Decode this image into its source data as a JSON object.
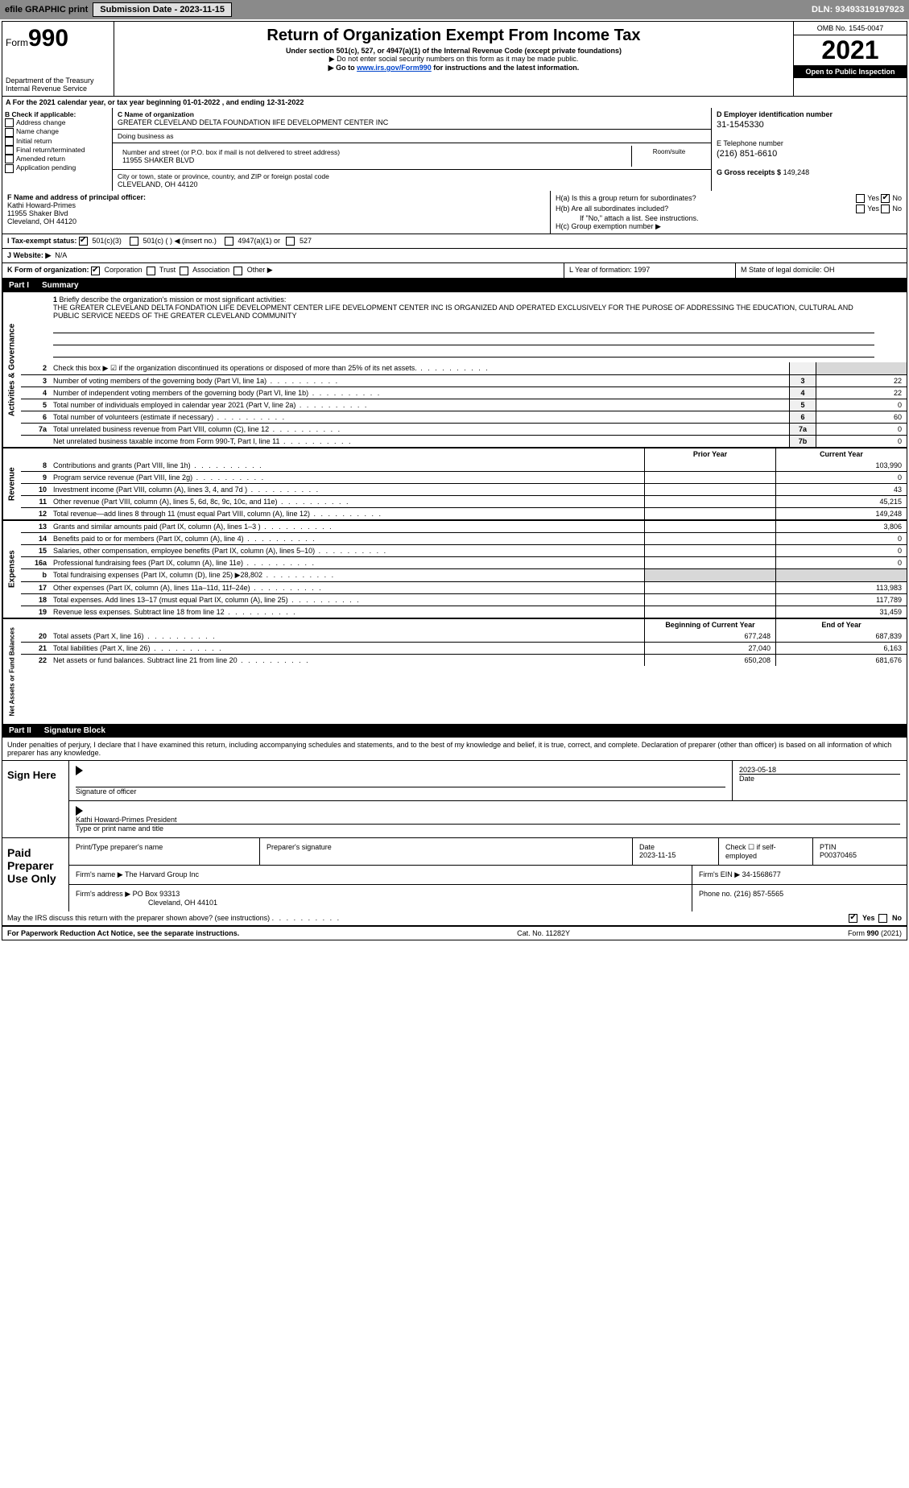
{
  "toolbar": {
    "efile_label": "efile GRAPHIC print",
    "submission_label": "Submission Date - 2023-11-15",
    "dln": "DLN: 93493319197923"
  },
  "header": {
    "form_word": "Form",
    "form_num": "990",
    "title": "Return of Organization Exempt From Income Tax",
    "subtitle": "Under section 501(c), 527, or 4947(a)(1) of the Internal Revenue Code (except private foundations)",
    "note1": "▶ Do not enter social security numbers on this form as it may be made public.",
    "note2_pre": "▶ Go to ",
    "note2_link": "www.irs.gov/Form990",
    "note2_post": " for instructions and the latest information.",
    "dept": "Department of the Treasury\nInternal Revenue Service",
    "omb": "OMB No. 1545-0047",
    "year": "2021",
    "inspect": "Open to Public Inspection"
  },
  "A": {
    "text": "For the 2021 calendar year, or tax year beginning 01-01-2022    , and ending 12-31-2022"
  },
  "B": {
    "label": "B Check if applicable:",
    "items": [
      "Address change",
      "Name change",
      "Initial return",
      "Final return/terminated",
      "Amended return",
      "Application pending"
    ]
  },
  "C": {
    "name_label": "C Name of organization",
    "name": "GREATER CLEVELAND DELTA FOUNDATION lIFE DEVELOPMENT CENTER INC",
    "dba_label": "Doing business as",
    "dba": "",
    "street_label": "Number and street (or P.O. box if mail is not delivered to street address)",
    "room_label": "Room/suite",
    "street": "11955 SHAKER BLVD",
    "city_label": "City or town, state or province, country, and ZIP or foreign postal code",
    "city": "CLEVELAND, OH  44120"
  },
  "D": {
    "label": "D Employer identification number",
    "value": "31-1545330"
  },
  "E": {
    "label": "E Telephone number",
    "value": "(216) 851-6610"
  },
  "G": {
    "label": "G Gross receipts $",
    "value": "149,248"
  },
  "F": {
    "label": "F  Name and address of principal officer:",
    "name": "Kathi Howard-Primes",
    "street": "11955 Shaker Blvd",
    "city": "Cleveland, OH  44120"
  },
  "H": {
    "a_label": "H(a)  Is this a group return for subordinates?",
    "a_yes": "Yes",
    "a_no": "No",
    "b_label": "H(b)  Are all subordinates included?",
    "b_yes": "Yes",
    "b_no": "No",
    "b_note": "If \"No,\" attach a list. See instructions.",
    "c_label": "H(c)  Group exemption number ▶"
  },
  "I": {
    "label": "I   Tax-exempt status:",
    "opt1": "501(c)(3)",
    "opt2": "501(c) (   ) ◀ (insert no.)",
    "opt3": "4947(a)(1) or",
    "opt4": "527"
  },
  "J": {
    "label": "J  Website: ▶",
    "value": "N/A"
  },
  "K": {
    "label": "K Form of organization:",
    "opts": [
      "Corporation",
      "Trust",
      "Association",
      "Other ▶"
    ]
  },
  "L": {
    "label": "L Year of formation: 1997"
  },
  "M": {
    "label": "M State of legal domicile: OH"
  },
  "part1": {
    "num": "Part I",
    "title": "Summary"
  },
  "mission": {
    "num": "1",
    "label": "Briefly describe the organization's mission or most significant activities:",
    "text": "THE GREATER CLEVELAND DELTA FONDATION LIFE DEVELOPMENT CENTER LIFE DEVELOPMENT CENTER INC IS ORGANIZED AND OPERATED EXCLUSIVELY FOR THE PUROSE OF ADDRESSING THE EDUCATION, CULTURAL AND PUBLIC SERVICE NEEDS OF THE GREATER CLEVELAND COMMUNITY"
  },
  "gov_lines": [
    {
      "n": "2",
      "d": "Check this box ▶ ☑ if the organization discontinued its operations or disposed of more than 25% of its net assets.",
      "box": "",
      "v": ""
    },
    {
      "n": "3",
      "d": "Number of voting members of the governing body (Part VI, line 1a)",
      "box": "3",
      "v": "22"
    },
    {
      "n": "4",
      "d": "Number of independent voting members of the governing body (Part VI, line 1b)",
      "box": "4",
      "v": "22"
    },
    {
      "n": "5",
      "d": "Total number of individuals employed in calendar year 2021 (Part V, line 2a)",
      "box": "5",
      "v": "0"
    },
    {
      "n": "6",
      "d": "Total number of volunteers (estimate if necessary)",
      "box": "6",
      "v": "60"
    },
    {
      "n": "7a",
      "d": "Total unrelated business revenue from Part VIII, column (C), line 12",
      "box": "7a",
      "v": "0"
    },
    {
      "n": "",
      "d": "Net unrelated business taxable income from Form 990-T, Part I, line 11",
      "box": "7b",
      "v": "0"
    }
  ],
  "rev_head": {
    "prior": "Prior Year",
    "current": "Current Year"
  },
  "rev_lines": [
    {
      "n": "8",
      "d": "Contributions and grants (Part VIII, line 1h)",
      "p": "",
      "c": "103,990"
    },
    {
      "n": "9",
      "d": "Program service revenue (Part VIII, line 2g)",
      "p": "",
      "c": "0"
    },
    {
      "n": "10",
      "d": "Investment income (Part VIII, column (A), lines 3, 4, and 7d )",
      "p": "",
      "c": "43"
    },
    {
      "n": "11",
      "d": "Other revenue (Part VIII, column (A), lines 5, 6d, 8c, 9c, 10c, and 11e)",
      "p": "",
      "c": "45,215"
    },
    {
      "n": "12",
      "d": "Total revenue—add lines 8 through 11 (must equal Part VIII, column (A), line 12)",
      "p": "",
      "c": "149,248"
    }
  ],
  "exp_lines": [
    {
      "n": "13",
      "d": "Grants and similar amounts paid (Part IX, column (A), lines 1–3 )",
      "p": "",
      "c": "3,806"
    },
    {
      "n": "14",
      "d": "Benefits paid to or for members (Part IX, column (A), line 4)",
      "p": "",
      "c": "0"
    },
    {
      "n": "15",
      "d": "Salaries, other compensation, employee benefits (Part IX, column (A), lines 5–10)",
      "p": "",
      "c": "0"
    },
    {
      "n": "16a",
      "d": "Professional fundraising fees (Part IX, column (A), line 11e)",
      "p": "",
      "c": "0"
    },
    {
      "n": "b",
      "d": "Total fundraising expenses (Part IX, column (D), line 25) ▶28,802",
      "p": "shade",
      "c": "shade"
    },
    {
      "n": "17",
      "d": "Other expenses (Part IX, column (A), lines 11a–11d, 11f–24e)",
      "p": "",
      "c": "113,983"
    },
    {
      "n": "18",
      "d": "Total expenses. Add lines 13–17 (must equal Part IX, column (A), line 25)",
      "p": "",
      "c": "117,789"
    },
    {
      "n": "19",
      "d": "Revenue less expenses. Subtract line 18 from line 12",
      "p": "",
      "c": "31,459"
    }
  ],
  "net_head": {
    "prior": "Beginning of Current Year",
    "current": "End of Year"
  },
  "net_lines": [
    {
      "n": "20",
      "d": "Total assets (Part X, line 16)",
      "p": "677,248",
      "c": "687,839"
    },
    {
      "n": "21",
      "d": "Total liabilities (Part X, line 26)",
      "p": "27,040",
      "c": "6,163"
    },
    {
      "n": "22",
      "d": "Net assets or fund balances. Subtract line 21 from line 20",
      "p": "650,208",
      "c": "681,676"
    }
  ],
  "side_labels": {
    "gov": "Activities & Governance",
    "rev": "Revenue",
    "exp": "Expenses",
    "net": "Net Assets or Fund Balances"
  },
  "part2": {
    "num": "Part II",
    "title": "Signature Block"
  },
  "sig": {
    "decl": "Under penalties of perjury, I declare that I have examined this return, including accompanying schedules and statements, and to the best of my knowledge and belief, it is true, correct, and complete. Declaration of preparer (other than officer) is based on all information of which preparer has any knowledge.",
    "sign_here": "Sign Here",
    "sig_officer": "Signature of officer",
    "date": "Date",
    "date_val": "2023-05-18",
    "name_title": "Kathi Howard-Primes  President",
    "name_label": "Type or print name and title",
    "paid": "Paid Preparer Use Only",
    "prep_name_label": "Print/Type preparer's name",
    "prep_sig_label": "Preparer's signature",
    "prep_date_label": "Date",
    "prep_date": "2023-11-15",
    "check_label": "Check ☐ if self-employed",
    "ptin_label": "PTIN",
    "ptin": "P00370465",
    "firm_name_label": "Firm's name    ▶",
    "firm_name": "The Harvard Group Inc",
    "firm_ein_label": "Firm's EIN ▶",
    "firm_ein": "34-1568677",
    "firm_addr_label": "Firm's address ▶",
    "firm_addr1": "PO Box 93313",
    "firm_addr2": "Cleveland, OH  44101",
    "phone_label": "Phone no.",
    "phone": "(216) 857-5565",
    "may_irs": "May the IRS discuss this return with the preparer shown above? (see instructions)",
    "yes": "Yes",
    "no": "No"
  },
  "footer": {
    "left": "For Paperwork Reduction Act Notice, see the separate instructions.",
    "center": "Cat. No. 11282Y",
    "right": "Form 990 (2021)"
  }
}
